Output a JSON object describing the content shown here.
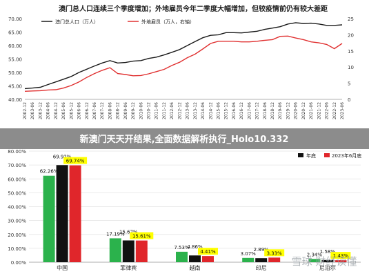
{
  "overlay": {
    "title": "新澳门天天开结果,全面数据解析执行_Holo10.332"
  },
  "watermark": "雪球 财经读懂",
  "chart_data": [
    {
      "type": "line",
      "title": "澳门总人口连续三个季度增加；外地雇员今年二季度大幅增加，但较疫情前仍有较大差距",
      "x": [
        "2002-12",
        "2003-06",
        "2003-12",
        "2004-06",
        "2004-12",
        "2005-06",
        "2005-12",
        "2006-06",
        "2006-12",
        "2007-06",
        "2007-12",
        "2008-06",
        "2008-12",
        "2009-06",
        "2009-12",
        "2010-06",
        "2010-12",
        "2011-06",
        "2011-12",
        "2012-06",
        "2012-12",
        "2013-06",
        "2013-12",
        "2014-06",
        "2014-12",
        "2015-06",
        "2015-12",
        "2016-06",
        "2016-12",
        "2017-06",
        "2017-12",
        "2018-06",
        "2018-12",
        "2019-06",
        "2019-12",
        "2020-06",
        "2020-12",
        "2021-06",
        "2021-12",
        "2022-06",
        "2022-12",
        "2023-06"
      ],
      "series": [
        {
          "name": "澳门总人口（万人）",
          "axis": "left",
          "color": "#1a1a1a",
          "values": [
            44.0,
            44.2,
            44.5,
            45.5,
            46.5,
            47.5,
            48.5,
            50.0,
            51.2,
            52.4,
            53.5,
            54.4,
            53.5,
            53.7,
            54.2,
            54.4,
            55.2,
            55.7,
            56.5,
            57.5,
            58.5,
            60.0,
            61.5,
            62.9,
            63.8,
            64.0,
            64.8,
            64.8,
            64.7,
            65.0,
            65.3,
            66.0,
            66.5,
            67.0,
            68.0,
            68.5,
            68.2,
            68.3,
            68.0,
            67.5,
            67.5,
            67.7
          ]
        },
        {
          "name": "外地雇员（万人，右轴）",
          "axis": "right",
          "color": "#e03030",
          "values": [
            2.5,
            2.6,
            2.7,
            2.9,
            3.0,
            3.5,
            4.3,
            5.4,
            6.8,
            8.0,
            9.0,
            9.8,
            8.0,
            7.7,
            7.3,
            7.4,
            7.9,
            8.6,
            9.3,
            10.5,
            11.5,
            12.9,
            14.0,
            15.6,
            17.3,
            18.0,
            18.0,
            18.0,
            17.8,
            17.8,
            18.0,
            18.3,
            18.5,
            19.5,
            19.6,
            19.0,
            18.5,
            17.8,
            17.5,
            17.0,
            15.7,
            17.3
          ]
        }
      ],
      "yleft": {
        "min": 40,
        "max": 70,
        "ticks": [
          "40.00",
          "45.00",
          "50.00",
          "55.00",
          "60.00",
          "65.00",
          "70.00"
        ]
      },
      "yright": {
        "min": 0,
        "max": 25,
        "ticks": [
          "0",
          "5",
          "10",
          "15",
          "20",
          "25"
        ]
      },
      "legend_position": "top-left",
      "grid": false
    },
    {
      "type": "bar",
      "categories": [
        "中国",
        "菲律宾",
        "越南",
        "印尼",
        "尼泊尔"
      ],
      "series": [
        {
          "name": "",
          "color": "#2bb24c",
          "values": [
            62.26,
            17.19,
            7.53,
            3.07,
            2.34
          ],
          "labels": [
            "62.26%",
            "17.19%",
            "7.53%",
            "3.07%",
            "2.34%"
          ]
        },
        {
          "name": "",
          "color": "#111111",
          "values": [
            69.92,
            15.67,
            4.86,
            2.89,
            1.58
          ],
          "labels": [
            "69.92%",
            "15.67%",
            "4.86%",
            "2.89%",
            "1.58%"
          ]
        },
        {
          "name": "2023年6月底",
          "color": "#e0262b",
          "values": [
            69.74,
            15.61,
            4.41,
            3.33,
            1.43
          ],
          "labels": [
            "69.74%",
            "15.61%",
            "4.41%",
            "3.33%",
            "1.43%"
          ]
        }
      ],
      "legend_visible": [
        "年底",
        "2023年6月底"
      ],
      "ylim": [
        0,
        80
      ],
      "yticks": [
        "0.00%",
        "10.00%",
        "20.00%",
        "30.00%",
        "40.00%",
        "50.00%",
        "60.00%",
        "70.00%",
        "80.00%"
      ],
      "grid": true
    }
  ]
}
